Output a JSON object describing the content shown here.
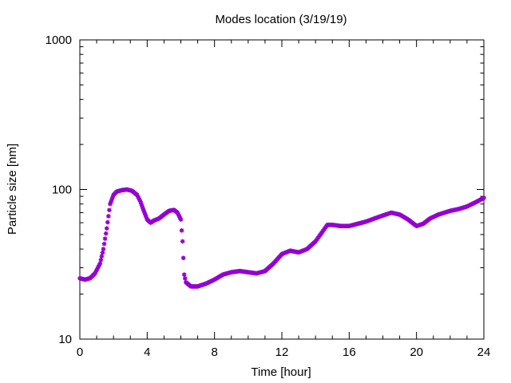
{
  "chart_data": {
    "type": "scatter",
    "title": "Modes location (3/19/19)",
    "xlabel": "Time [hour]",
    "ylabel": "Particle size [nm]",
    "xlim": [
      0,
      24
    ],
    "ylim": [
      10,
      1000
    ],
    "yscale": "log",
    "x_ticks": [
      0,
      4,
      8,
      12,
      16,
      20,
      24
    ],
    "x_minor_step": 1,
    "y_ticks": [
      10,
      100,
      1000
    ],
    "grid": false,
    "legend": "none",
    "marker": "asterisk",
    "color": "#9400D3",
    "series": [
      {
        "points": [
          [
            0.0,
            25.5
          ],
          [
            0.3,
            25.0
          ],
          [
            0.6,
            25.5
          ],
          [
            0.9,
            27.5
          ],
          [
            1.2,
            32
          ],
          [
            1.4,
            40
          ],
          [
            1.6,
            55
          ],
          [
            1.8,
            80
          ],
          [
            2.0,
            92
          ],
          [
            2.2,
            97
          ],
          [
            2.5,
            99
          ],
          [
            2.8,
            100
          ],
          [
            3.1,
            98
          ],
          [
            3.4,
            92
          ],
          [
            3.6,
            83
          ],
          [
            3.8,
            72
          ],
          [
            4.0,
            63
          ],
          [
            4.2,
            60
          ],
          [
            4.4,
            62
          ],
          [
            4.7,
            64
          ],
          [
            5.0,
            68
          ],
          [
            5.3,
            72
          ],
          [
            5.6,
            73
          ],
          [
            5.8,
            70
          ],
          [
            6.0,
            63
          ],
          [
            6.1,
            45
          ],
          [
            6.2,
            27
          ],
          [
            6.3,
            24
          ],
          [
            6.6,
            22.5
          ],
          [
            7.0,
            22.5
          ],
          [
            7.5,
            23.5
          ],
          [
            8.0,
            25
          ],
          [
            8.5,
            27
          ],
          [
            9.0,
            28
          ],
          [
            9.5,
            28.5
          ],
          [
            10.0,
            28
          ],
          [
            10.5,
            27.5
          ],
          [
            11.0,
            28.5
          ],
          [
            11.5,
            32
          ],
          [
            12.0,
            37
          ],
          [
            12.5,
            39
          ],
          [
            13.0,
            38
          ],
          [
            13.5,
            40
          ],
          [
            14.0,
            45
          ],
          [
            14.4,
            52
          ],
          [
            14.7,
            58
          ],
          [
            15.0,
            58
          ],
          [
            15.5,
            57
          ],
          [
            16.0,
            57
          ],
          [
            16.5,
            59
          ],
          [
            17.0,
            61
          ],
          [
            17.5,
            64
          ],
          [
            18.0,
            67
          ],
          [
            18.5,
            70
          ],
          [
            19.0,
            68
          ],
          [
            19.5,
            63
          ],
          [
            20.0,
            57
          ],
          [
            20.4,
            59
          ],
          [
            20.8,
            64
          ],
          [
            21.3,
            68
          ],
          [
            22.0,
            72
          ],
          [
            22.5,
            74
          ],
          [
            23.0,
            77
          ],
          [
            23.5,
            82
          ],
          [
            24.0,
            88
          ]
        ]
      }
    ]
  }
}
